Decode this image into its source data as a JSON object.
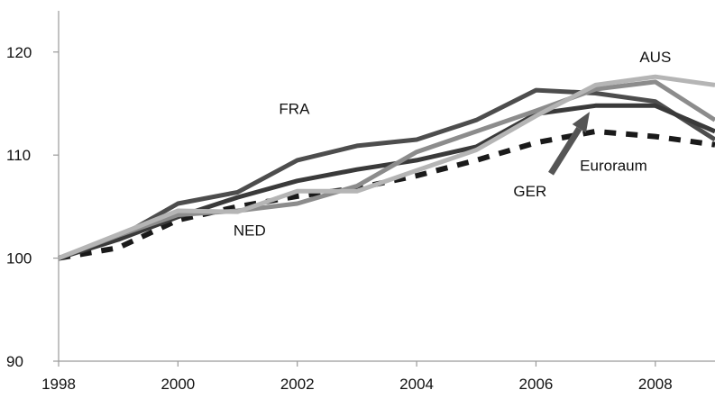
{
  "chart_data": {
    "type": "line",
    "x": [
      1998,
      1999,
      2000,
      2001,
      2002,
      2003,
      2004,
      2005,
      2006,
      2007,
      2008,
      2009
    ],
    "xticks": [
      "1998",
      "2000",
      "2002",
      "2004",
      "2006",
      "2008"
    ],
    "yticks": [
      "90",
      "100",
      "110",
      "120"
    ],
    "xlim": [
      1998,
      2009
    ],
    "ylim": [
      90,
      124
    ],
    "grid": false,
    "series": [
      {
        "name": "Euroraum",
        "color": "#1a1a1a",
        "style": "dashed",
        "values": [
          100.0,
          101.0,
          103.7,
          105.0,
          106.0,
          106.8,
          108.0,
          109.5,
          111.2,
          112.3,
          111.8,
          111.0
        ]
      },
      {
        "name": "FRA",
        "color": "#4d4d4d",
        "style": "solid",
        "values": [
          100.0,
          102.0,
          105.3,
          106.4,
          109.5,
          110.9,
          111.5,
          113.4,
          116.3,
          116.0,
          115.2,
          111.5
        ]
      },
      {
        "name": "GER",
        "color": "#3a3a3a",
        "style": "solid",
        "values": [
          100.0,
          101.8,
          104.0,
          105.9,
          107.5,
          108.6,
          109.5,
          110.8,
          114.0,
          114.8,
          114.8,
          112.3
        ]
      },
      {
        "name": "NED",
        "color": "#8c8c8c",
        "style": "solid",
        "values": [
          100.0,
          102.2,
          104.2,
          104.6,
          105.3,
          107.0,
          110.3,
          112.3,
          114.3,
          116.4,
          117.1,
          113.4
        ]
      },
      {
        "name": "AUS",
        "color": "#b5b5b5",
        "style": "solid",
        "values": [
          100.0,
          102.3,
          104.6,
          104.5,
          106.5,
          106.5,
          108.5,
          110.5,
          113.8,
          116.8,
          117.6,
          116.8
        ]
      }
    ],
    "annotations": [
      {
        "text": "FRA",
        "x": 2001.95,
        "y": 114.0
      },
      {
        "text": "AUS",
        "x": 2008.0,
        "y": 119.0
      },
      {
        "text": "NED",
        "x": 2001.2,
        "y": 102.2
      },
      {
        "text": "GER",
        "x": 2005.9,
        "y": 106.0
      },
      {
        "text": "Euroraum",
        "x": 2007.3,
        "y": 108.5
      }
    ],
    "arrow": {
      "from": [
        2006.25,
        108.2
      ],
      "to": [
        2006.9,
        114.2
      ]
    }
  }
}
